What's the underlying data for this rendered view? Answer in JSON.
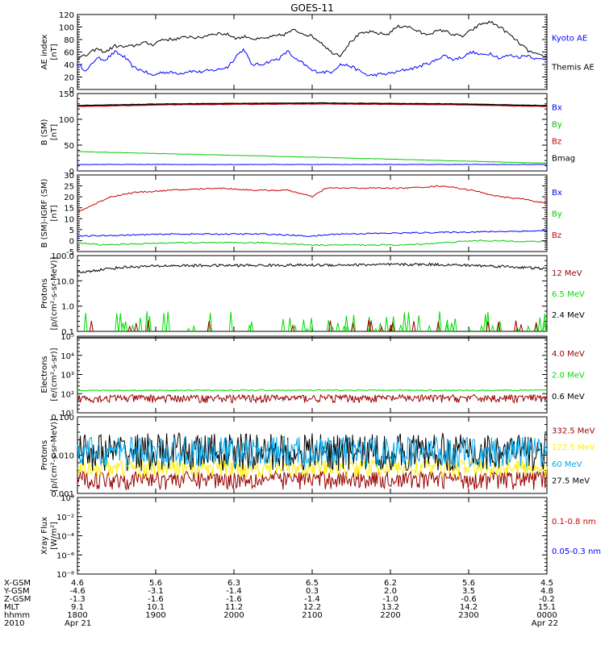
{
  "title": "GOES-11",
  "panels": [
    {
      "id": "ae",
      "ylabel": [
        "AE index",
        "[nT]"
      ],
      "ticks": [
        "0",
        "20",
        "40",
        "60",
        "80",
        "100",
        "120"
      ],
      "legend": [
        {
          "label": "Kyoto AE",
          "color": "#0000ff"
        },
        {
          "label": "Themis AE",
          "color": "#000000"
        }
      ]
    },
    {
      "id": "bsm",
      "ylabel": [
        "B (SM)",
        "[nT]"
      ],
      "ticks": [
        "0",
        "50",
        "100",
        "150"
      ],
      "legend": [
        {
          "label": "Bx",
          "color": "#0000ff"
        },
        {
          "label": "By",
          "color": "#00cc00"
        },
        {
          "label": "Bz",
          "color": "#cc0000"
        },
        {
          "label": "Bmag",
          "color": "#000000"
        }
      ]
    },
    {
      "id": "bdiff",
      "ylabel": [
        "B (SM)-IGRF (SM)",
        "[nT]"
      ],
      "ticks": [
        "-5",
        "0",
        "5",
        "10",
        "15",
        "20",
        "25",
        "30"
      ],
      "legend": [
        {
          "label": "Bx",
          "color": "#0000ff"
        },
        {
          "label": "By",
          "color": "#00cc00"
        },
        {
          "label": "Bz",
          "color": "#cc0000"
        }
      ]
    },
    {
      "id": "protons",
      "ylabel": [
        "Protons",
        "[p/(cm²-s-sr-MeV)]"
      ],
      "ticks": [
        "0.1",
        "1.0",
        "10.0",
        "100.0"
      ],
      "legend": [
        {
          "label": "12 MeV",
          "color": "#990000"
        },
        {
          "label": "6.5 MeV",
          "color": "#00dd00"
        },
        {
          "label": "2.4 MeV",
          "color": "#000000"
        }
      ]
    },
    {
      "id": "electrons",
      "ylabel": [
        "Electrons",
        "[e/(cm²-s-sr)]"
      ],
      "ticks": [
        "10¹",
        "10²",
        "10³",
        "10⁴",
        "10⁵"
      ],
      "legend": [
        {
          "label": "4.0 MeV",
          "color": "#990000"
        },
        {
          "label": "2.0 MeV",
          "color": "#00dd00"
        },
        {
          "label": "0.6 MeV",
          "color": "#000000"
        }
      ]
    },
    {
      "id": "hiprotons",
      "ylabel": [
        "Protons",
        "[p/(cm²-s-sr-MeV)]"
      ],
      "ticks": [
        "0.001",
        "0.010",
        "0.100"
      ],
      "legend": [
        {
          "label": "332.5 MeV",
          "color": "#990000"
        },
        {
          "label": "122.5 MeV",
          "color": "#ffee00"
        },
        {
          "label": "60 MeV",
          "color": "#00aaee"
        },
        {
          "label": "27.5 MeV",
          "color": "#000000"
        }
      ]
    },
    {
      "id": "xray",
      "ylabel": [
        "Xray Flux",
        "[W/m²]"
      ],
      "ticks": [
        "10⁻⁸",
        "10⁻⁶",
        "10⁻⁴",
        "10⁻²",
        "10⁰"
      ],
      "legend": [
        {
          "label": "0.1-0.8 nm",
          "color": "#cc0000"
        },
        {
          "label": "0.05-0.3 nm",
          "color": "#0000ff"
        }
      ]
    }
  ],
  "footer": {
    "row_labels": [
      "X-GSM",
      "Y-GSM",
      "Z-GSM",
      "MLT",
      "hhmm",
      "2010"
    ],
    "columns": [
      {
        "x": "4.6",
        "y": "-4.6",
        "z": "-1.3",
        "mlt": "9.1",
        "hhmm": "1800",
        "date": "Apr 21"
      },
      {
        "x": "5.6",
        "y": "-3.1",
        "z": "-1.6",
        "mlt": "10.1",
        "hhmm": "1900",
        "date": ""
      },
      {
        "x": "6.3",
        "y": "-1.4",
        "z": "-1.6",
        "mlt": "11.2",
        "hhmm": "2000",
        "date": ""
      },
      {
        "x": "6.5",
        "y": "0.3",
        "z": "-1.4",
        "mlt": "12.2",
        "hhmm": "2100",
        "date": ""
      },
      {
        "x": "6.2",
        "y": "2.0",
        "z": "-1.0",
        "mlt": "13.2",
        "hhmm": "2200",
        "date": ""
      },
      {
        "x": "5.6",
        "y": "3.5",
        "z": "-0.6",
        "mlt": "14.2",
        "hhmm": "2300",
        "date": ""
      },
      {
        "x": "4.5",
        "y": "4.8",
        "z": "-0.2",
        "mlt": "15.1",
        "hhmm": "0000",
        "date": "Apr 22"
      }
    ]
  },
  "chart_data": [
    {
      "type": "line",
      "title": "GOES-11",
      "ylabel": "AE index [nT]",
      "ylim": [
        0,
        120
      ],
      "x": [
        "1800",
        "1900",
        "2000",
        "2100",
        "2200",
        "2300",
        "0000"
      ],
      "series": [
        {
          "name": "Kyoto AE",
          "color": "#0000ff",
          "values": [
            [
              0,
              40
            ],
            [
              0.02,
              30
            ],
            [
              0.04,
              50
            ],
            [
              0.06,
              48
            ],
            [
              0.08,
              60
            ],
            [
              0.1,
              52
            ],
            [
              0.12,
              35
            ],
            [
              0.14,
              30
            ],
            [
              0.16,
              22
            ],
            [
              0.18,
              28
            ],
            [
              0.2,
              27
            ],
            [
              0.22,
              26
            ],
            [
              0.24,
              30
            ],
            [
              0.26,
              28
            ],
            [
              0.28,
              30
            ],
            [
              0.3,
              32
            ],
            [
              0.32,
              36
            ],
            [
              0.34,
              55
            ],
            [
              0.355,
              65
            ],
            [
              0.37,
              40
            ],
            [
              0.39,
              40
            ],
            [
              0.41,
              45
            ],
            [
              0.43,
              50
            ],
            [
              0.45,
              62
            ],
            [
              0.46,
              50
            ],
            [
              0.48,
              42
            ],
            [
              0.5,
              30
            ],
            [
              0.52,
              28
            ],
            [
              0.54,
              28
            ],
            [
              0.56,
              40
            ],
            [
              0.58,
              38
            ],
            [
              0.6,
              30
            ],
            [
              0.62,
              22
            ],
            [
              0.64,
              24
            ],
            [
              0.66,
              25
            ],
            [
              0.68,
              28
            ],
            [
              0.7,
              32
            ],
            [
              0.72,
              35
            ],
            [
              0.74,
              40
            ],
            [
              0.76,
              45
            ],
            [
              0.78,
              55
            ],
            [
              0.8,
              48
            ],
            [
              0.82,
              52
            ],
            [
              0.84,
              60
            ],
            [
              0.86,
              55
            ],
            [
              0.88,
              58
            ],
            [
              0.9,
              50
            ],
            [
              0.92,
              55
            ],
            [
              0.94,
              52
            ],
            [
              0.96,
              55
            ],
            [
              0.98,
              48
            ],
            [
              1,
              50
            ]
          ]
        },
        {
          "name": "Themis AE",
          "color": "#000000",
          "values": [
            [
              0,
              50
            ],
            [
              0.02,
              55
            ],
            [
              0.04,
              65
            ],
            [
              0.06,
              60
            ],
            [
              0.08,
              70
            ],
            [
              0.1,
              68
            ],
            [
              0.12,
              70
            ],
            [
              0.14,
              75
            ],
            [
              0.16,
              72
            ],
            [
              0.18,
              80
            ],
            [
              0.2,
              80
            ],
            [
              0.22,
              82
            ],
            [
              0.24,
              85
            ],
            [
              0.26,
              82
            ],
            [
              0.28,
              88
            ],
            [
              0.3,
              90
            ],
            [
              0.32,
              88
            ],
            [
              0.34,
              82
            ],
            [
              0.36,
              85
            ],
            [
              0.38,
              80
            ],
            [
              0.4,
              82
            ],
            [
              0.42,
              85
            ],
            [
              0.44,
              88
            ],
            [
              0.46,
              95
            ],
            [
              0.48,
              90
            ],
            [
              0.5,
              85
            ],
            [
              0.52,
              75
            ],
            [
              0.54,
              60
            ],
            [
              0.56,
              55
            ],
            [
              0.58,
              75
            ],
            [
              0.6,
              88
            ],
            [
              0.62,
              92
            ],
            [
              0.64,
              90
            ],
            [
              0.66,
              88
            ],
            [
              0.68,
              100
            ],
            [
              0.7,
              102
            ],
            [
              0.72,
              95
            ],
            [
              0.74,
              88
            ],
            [
              0.76,
              92
            ],
            [
              0.78,
              95
            ],
            [
              0.8,
              88
            ],
            [
              0.82,
              85
            ],
            [
              0.84,
              95
            ],
            [
              0.86,
              105
            ],
            [
              0.88,
              108
            ],
            [
              0.9,
              100
            ],
            [
              0.92,
              88
            ],
            [
              0.94,
              75
            ],
            [
              0.96,
              62
            ],
            [
              0.98,
              55
            ],
            [
              1,
              52
            ]
          ]
        }
      ]
    },
    {
      "type": "line",
      "ylabel": "B (SM) [nT]",
      "ylim": [
        -30,
        150
      ],
      "series": [
        {
          "name": "Bx",
          "color": "#0000ff",
          "values": [
            [
              0,
              -15
            ],
            [
              0.5,
              -15
            ],
            [
              1,
              -15
            ]
          ]
        },
        {
          "name": "By",
          "color": "#00cc00",
          "values": [
            [
              0,
              15
            ],
            [
              0.5,
              2
            ],
            [
              1,
              -12
            ]
          ]
        },
        {
          "name": "Bz",
          "color": "#cc0000",
          "values": [
            [
              0,
              120
            ],
            [
              0.2,
              124
            ],
            [
              0.5,
              126
            ],
            [
              0.8,
              124
            ],
            [
              1,
              120
            ]
          ]
        },
        {
          "name": "Bmag",
          "color": "#000000",
          "values": [
            [
              0,
              122
            ],
            [
              0.2,
              126
            ],
            [
              0.5,
              128
            ],
            [
              0.8,
              126
            ],
            [
              1,
              122
            ]
          ]
        }
      ]
    },
    {
      "type": "line",
      "ylabel": "B (SM)-IGRF (SM) [nT]",
      "ylim": [
        -5,
        30
      ],
      "series": [
        {
          "name": "Bx",
          "color": "#0000ff",
          "values": [
            [
              0,
              2
            ],
            [
              0.2,
              3
            ],
            [
              0.4,
              3
            ],
            [
              0.5,
              2
            ],
            [
              0.55,
              3
            ],
            [
              0.7,
              3.5
            ],
            [
              0.85,
              4
            ],
            [
              1,
              4.5
            ]
          ]
        },
        {
          "name": "By",
          "color": "#00cc00",
          "values": [
            [
              0,
              -1
            ],
            [
              0.05,
              -2
            ],
            [
              0.2,
              -1
            ],
            [
              0.4,
              -1
            ],
            [
              0.5,
              -2
            ],
            [
              0.7,
              -2
            ],
            [
              0.85,
              0
            ],
            [
              1,
              -0.5
            ]
          ]
        },
        {
          "name": "Bz",
          "color": "#cc0000",
          "values": [
            [
              0,
              13
            ],
            [
              0.03,
              16
            ],
            [
              0.07,
              20
            ],
            [
              0.12,
              22
            ],
            [
              0.2,
              23
            ],
            [
              0.3,
              24
            ],
            [
              0.38,
              23
            ],
            [
              0.45,
              23
            ],
            [
              0.5,
              20
            ],
            [
              0.53,
              24
            ],
            [
              0.6,
              24
            ],
            [
              0.7,
              24
            ],
            [
              0.78,
              25
            ],
            [
              0.84,
              23
            ],
            [
              0.9,
              20
            ],
            [
              0.95,
              19
            ],
            [
              1,
              17
            ]
          ]
        }
      ]
    },
    {
      "type": "line",
      "ylabel": "Protons [p/(cm²-s-sr-MeV)]",
      "log": true,
      "ylim": [
        0.1,
        100
      ],
      "series": [
        {
          "name": "2.4 MeV",
          "color": "#000000",
          "values": [
            [
              0,
              20
            ],
            [
              0.05,
              28
            ],
            [
              0.1,
              35
            ],
            [
              0.2,
              40
            ],
            [
              0.5,
              42
            ],
            [
              0.75,
              45
            ],
            [
              0.9,
              38
            ],
            [
              1,
              30
            ]
          ]
        }
      ]
    },
    {
      "type": "line",
      "ylabel": "Electrons [e/(cm²-s-sr)]",
      "log": true,
      "ylim": [
        10,
        100000
      ],
      "series": [
        {
          "name": "2.0 MeV",
          "color": "#00dd00",
          "values": [
            [
              0,
              150
            ],
            [
              1,
              150
            ]
          ]
        },
        {
          "name": "4.0 MeV",
          "color": "#990000",
          "values": [
            [
              0,
              60
            ],
            [
              1,
              60
            ]
          ]
        },
        {
          "name": "0.6 MeV",
          "color": "#000000",
          "values": [
            [
              0,
              100000
            ],
            [
              1,
              100000
            ]
          ]
        }
      ]
    },
    {
      "type": "line",
      "ylabel": "Protons [p/(cm²-s-sr-MeV)]",
      "log": true,
      "ylim": [
        0.001,
        0.1
      ],
      "series": [
        {
          "name": "27.5 MeV",
          "color": "#000000",
          "values": [
            [
              0,
              0.012
            ],
            [
              1,
              0.012
            ]
          ]
        },
        {
          "name": "60 MeV",
          "color": "#00aaee",
          "values": [
            [
              0,
              0.012
            ],
            [
              1,
              0.012
            ]
          ]
        },
        {
          "name": "122.5 MeV",
          "color": "#ffee00",
          "values": [
            [
              0,
              0.005
            ],
            [
              1,
              0.005
            ]
          ]
        },
        {
          "name": "332.5 MeV",
          "color": "#990000",
          "values": [
            [
              0,
              0.0025
            ],
            [
              1,
              0.0025
            ]
          ]
        }
      ]
    },
    {
      "type": "line",
      "ylabel": "Xray Flux [W/m²]",
      "log": true,
      "ylim": [
        1e-09,
        1
      ],
      "series": []
    }
  ]
}
